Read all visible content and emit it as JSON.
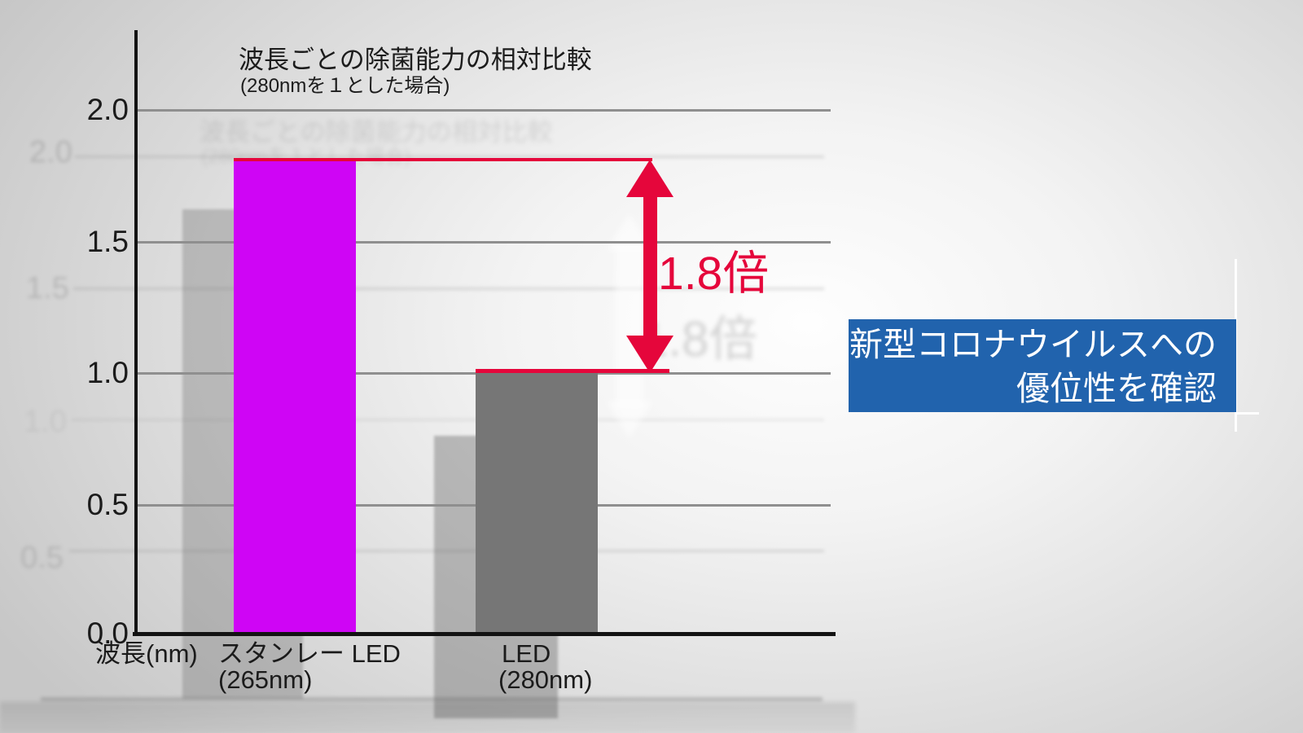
{
  "chart_data": {
    "type": "bar",
    "title": "波長ごとの除菌能力の相対比較",
    "subtitle": "(280nmを１とした場合)",
    "xlabel": "波長(nm)",
    "ylim": [
      0.0,
      2.0
    ],
    "ytick_labels": [
      "2.0",
      "1.5",
      "1.0",
      "0.5",
      "0.0"
    ],
    "yticks": [
      2.0,
      1.5,
      1.0,
      0.5,
      0.0
    ],
    "grid": true,
    "legend": "none",
    "categories": [
      {
        "line1": "スタンレー LED",
        "line2": "(265nm)"
      },
      {
        "line1": "LED",
        "line2": "(280nm)"
      }
    ],
    "values": [
      1.8,
      1.0
    ],
    "bar_colors": [
      "#cf05f5",
      "#767676"
    ],
    "annotation": {
      "label": "1.8倍",
      "color": "#e5063b",
      "from_value": 1.0,
      "to_value": 1.8
    }
  },
  "callout": {
    "line1": "新型コロナウイルスへの",
    "line2": "優位性を確認",
    "bg_color": "#2163ad",
    "text_color": "#ffffff"
  }
}
